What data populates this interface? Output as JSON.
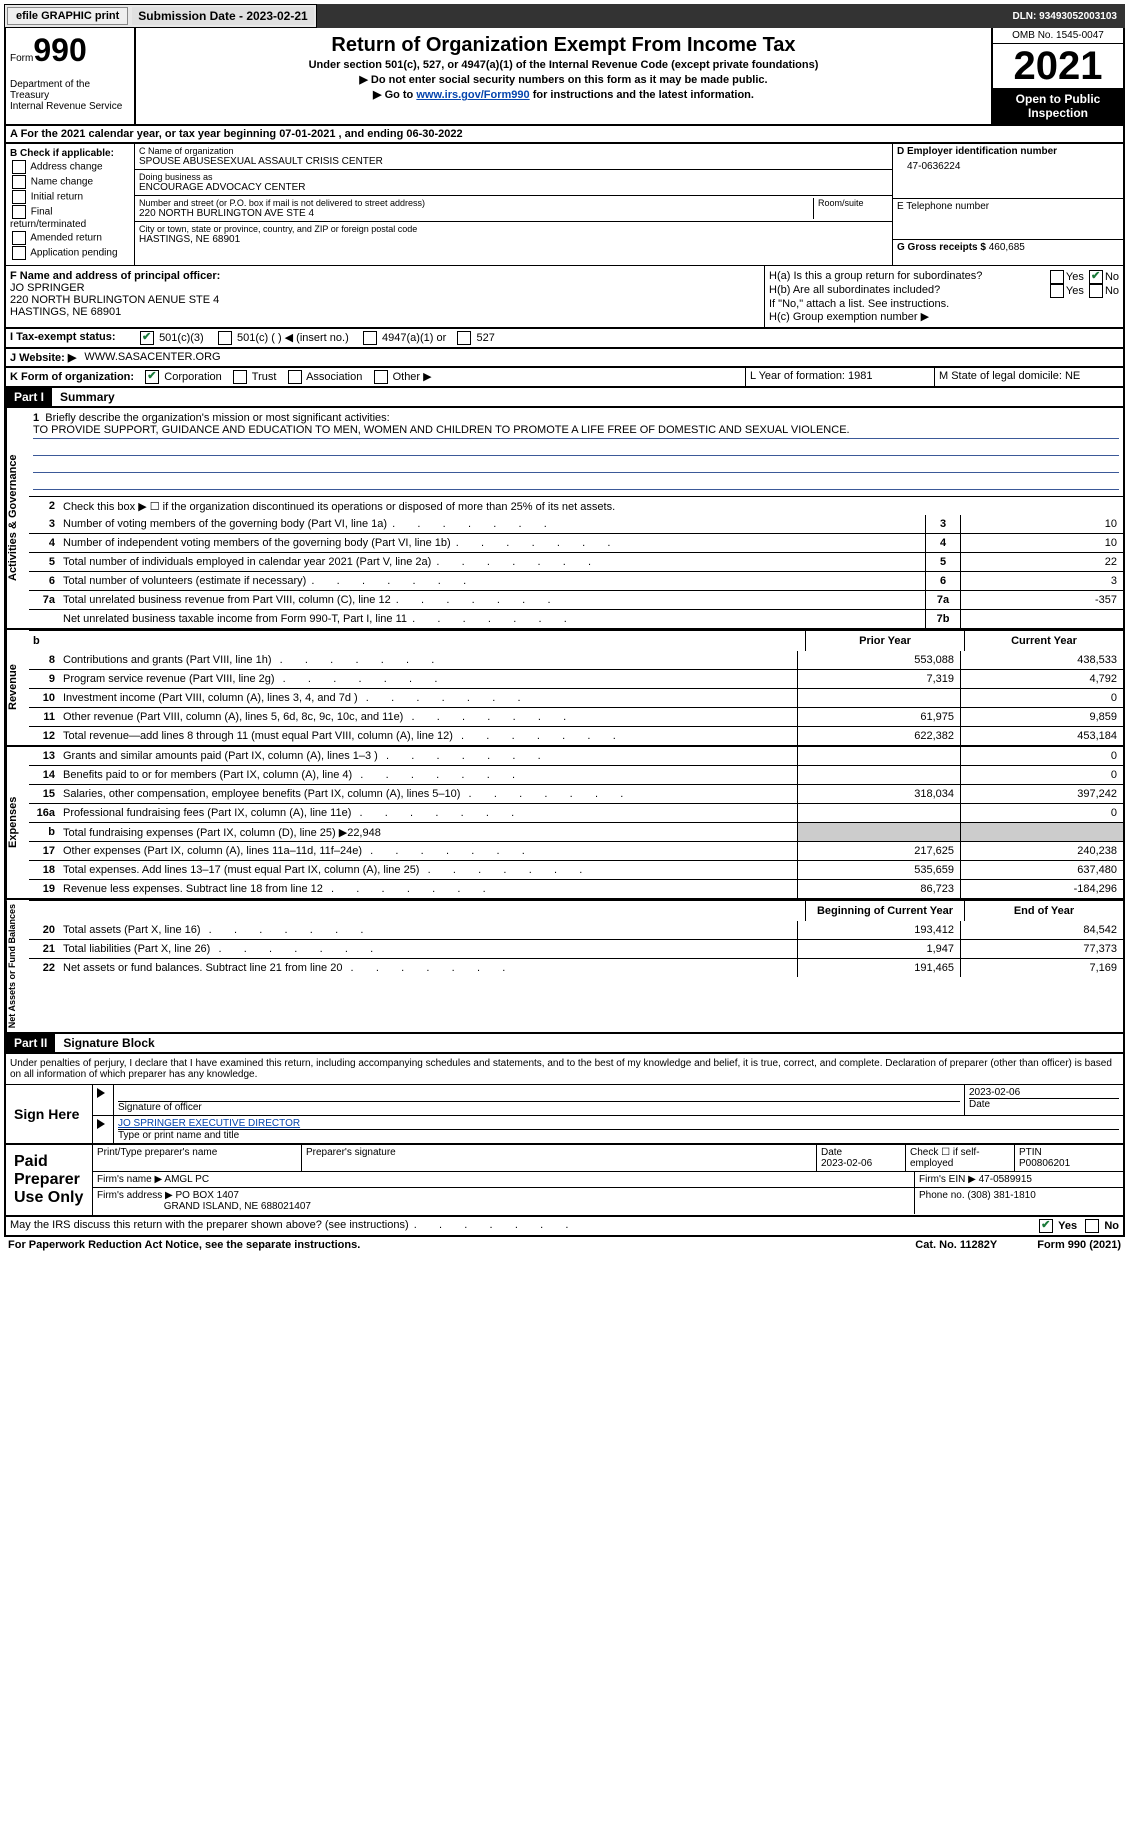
{
  "topbar": {
    "efile": "efile GRAPHIC print",
    "subdate_label": "Submission Date - 2023-02-21",
    "dln": "DLN: 93493052003103"
  },
  "header": {
    "form_word": "Form",
    "form_num": "990",
    "dept": "Department of the Treasury",
    "irs": "Internal Revenue Service",
    "title": "Return of Organization Exempt From Income Tax",
    "sub1": "Under section 501(c), 527, or 4947(a)(1) of the Internal Revenue Code (except private foundations)",
    "sub2": "▶ Do not enter social security numbers on this form as it may be made public.",
    "sub3_pre": "▶ Go to ",
    "sub3_link": "www.irs.gov/Form990",
    "sub3_post": " for instructions and the latest information.",
    "omb": "OMB No. 1545-0047",
    "year": "2021",
    "inspect": "Open to Public Inspection"
  },
  "row_a": "A For the 2021 calendar year, or tax year beginning 07-01-2021    , and ending 06-30-2022",
  "col_b": {
    "hdr": "B Check if applicable:",
    "opts": [
      "Address change",
      "Name change",
      "Initial return",
      "Final return/terminated",
      "Amended return",
      "Application pending"
    ]
  },
  "col_c": {
    "name_lbl": "C Name of organization",
    "name": "SPOUSE ABUSESEXUAL ASSAULT CRISIS CENTER",
    "dba_lbl": "Doing business as",
    "dba": "ENCOURAGE ADVOCACY CENTER",
    "addr_lbl": "Number and street (or P.O. box if mail is not delivered to street address)",
    "addr": "220 NORTH BURLINGTON AVE STE 4",
    "room_lbl": "Room/suite",
    "city_lbl": "City or town, state or province, country, and ZIP or foreign postal code",
    "city": "HASTINGS, NE  68901"
  },
  "col_d": {
    "ein_lbl": "D Employer identification number",
    "ein": "47-0636224",
    "tel_lbl": "E Telephone number",
    "gross_lbl": "G Gross receipts $",
    "gross": "460,685"
  },
  "section_f": {
    "f_lbl": "F  Name and address of principal officer:",
    "f_name": "JO SPRINGER",
    "f_addr1": "220 NORTH BURLINGTON AENUE STE 4",
    "f_addr2": "HASTINGS, NE  68901",
    "ha": "H(a)  Is this a group return for subordinates?",
    "hb": "H(b)  Are all subordinates included?",
    "hb_note": "If \"No,\" attach a list. See instructions.",
    "hc": "H(c)  Group exemption number ▶",
    "yes": "Yes",
    "no": "No"
  },
  "row_i": {
    "lbl": "I  Tax-exempt status:",
    "o1": "501(c)(3)",
    "o2": "501(c) (  ) ◀ (insert no.)",
    "o3": "4947(a)(1) or",
    "o4": "527"
  },
  "row_j": {
    "lbl": "J  Website: ▶",
    "val": "WWW.SASACENTER.ORG"
  },
  "row_k": {
    "lbl": "K Form of organization:",
    "o1": "Corporation",
    "o2": "Trust",
    "o3": "Association",
    "o4": "Other ▶",
    "l": "L Year of formation: 1981",
    "m": "M State of legal domicile: NE"
  },
  "part1": {
    "hdr": "Part I",
    "title": "Summary"
  },
  "mission": {
    "lbl": "Briefly describe the organization's mission or most significant activities:",
    "text": "TO PROVIDE SUPPORT, GUIDANCE AND EDUCATION TO MEN, WOMEN AND CHILDREN TO PROMOTE A LIFE FREE OF DOMESTIC AND SEXUAL VIOLENCE."
  },
  "line2": "Check this box ▶ ☐ if the organization discontinued its operations or disposed of more than 25% of its net assets.",
  "lines_gov": [
    {
      "n": "3",
      "d": "Number of voting members of the governing body (Part VI, line 1a)",
      "b": "3",
      "v": "10"
    },
    {
      "n": "4",
      "d": "Number of independent voting members of the governing body (Part VI, line 1b)",
      "b": "4",
      "v": "10"
    },
    {
      "n": "5",
      "d": "Total number of individuals employed in calendar year 2021 (Part V, line 2a)",
      "b": "5",
      "v": "22"
    },
    {
      "n": "6",
      "d": "Total number of volunteers (estimate if necessary)",
      "b": "6",
      "v": "3"
    },
    {
      "n": "7a",
      "d": "Total unrelated business revenue from Part VIII, column (C), line 12",
      "b": "7a",
      "v": "-357"
    },
    {
      "n": "",
      "d": "Net unrelated business taxable income from Form 990-T, Part I, line 11",
      "b": "7b",
      "v": ""
    }
  ],
  "col_hdrs": {
    "prior": "Prior Year",
    "current": "Current Year",
    "begin": "Beginning of Current Year",
    "end": "End of Year"
  },
  "lines_rev": [
    {
      "n": "8",
      "d": "Contributions and grants (Part VIII, line 1h)",
      "p": "553,088",
      "c": "438,533"
    },
    {
      "n": "9",
      "d": "Program service revenue (Part VIII, line 2g)",
      "p": "7,319",
      "c": "4,792"
    },
    {
      "n": "10",
      "d": "Investment income (Part VIII, column (A), lines 3, 4, and 7d )",
      "p": "",
      "c": "0"
    },
    {
      "n": "11",
      "d": "Other revenue (Part VIII, column (A), lines 5, 6d, 8c, 9c, 10c, and 11e)",
      "p": "61,975",
      "c": "9,859"
    },
    {
      "n": "12",
      "d": "Total revenue—add lines 8 through 11 (must equal Part VIII, column (A), line 12)",
      "p": "622,382",
      "c": "453,184"
    }
  ],
  "lines_exp": [
    {
      "n": "13",
      "d": "Grants and similar amounts paid (Part IX, column (A), lines 1–3 )",
      "p": "",
      "c": "0"
    },
    {
      "n": "14",
      "d": "Benefits paid to or for members (Part IX, column (A), line 4)",
      "p": "",
      "c": "0"
    },
    {
      "n": "15",
      "d": "Salaries, other compensation, employee benefits (Part IX, column (A), lines 5–10)",
      "p": "318,034",
      "c": "397,242"
    },
    {
      "n": "16a",
      "d": "Professional fundraising fees (Part IX, column (A), line 11e)",
      "p": "",
      "c": "0"
    },
    {
      "n": "b",
      "d": "Total fundraising expenses (Part IX, column (D), line 25) ▶22,948",
      "p": "grey",
      "c": "grey"
    },
    {
      "n": "17",
      "d": "Other expenses (Part IX, column (A), lines 11a–11d, 11f–24e)",
      "p": "217,625",
      "c": "240,238"
    },
    {
      "n": "18",
      "d": "Total expenses. Add lines 13–17 (must equal Part IX, column (A), line 25)",
      "p": "535,659",
      "c": "637,480"
    },
    {
      "n": "19",
      "d": "Revenue less expenses. Subtract line 18 from line 12",
      "p": "86,723",
      "c": "-184,296"
    }
  ],
  "lines_net": [
    {
      "n": "20",
      "d": "Total assets (Part X, line 16)",
      "p": "193,412",
      "c": "84,542"
    },
    {
      "n": "21",
      "d": "Total liabilities (Part X, line 26)",
      "p": "1,947",
      "c": "77,373"
    },
    {
      "n": "22",
      "d": "Net assets or fund balances. Subtract line 21 from line 20",
      "p": "191,465",
      "c": "7,169"
    }
  ],
  "vtabs": {
    "gov": "Activities & Governance",
    "rev": "Revenue",
    "exp": "Expenses",
    "net": "Net Assets or Fund Balances"
  },
  "part2": {
    "hdr": "Part II",
    "title": "Signature Block",
    "penalty": "Under penalties of perjury, I declare that I have examined this return, including accompanying schedules and statements, and to the best of my knowledge and belief, it is true, correct, and complete. Declaration of preparer (other than officer) is based on all information of which preparer has any knowledge."
  },
  "sign": {
    "here": "Sign Here",
    "sig_lbl": "Signature of officer",
    "date": "2023-02-06",
    "date_lbl": "Date",
    "name": "JO SPRINGER  EXECUTIVE DIRECTOR",
    "name_lbl": "Type or print name and title"
  },
  "paid": {
    "hdr": "Paid Preparer Use Only",
    "print_lbl": "Print/Type preparer's name",
    "sig_lbl": "Preparer's signature",
    "date_lbl": "Date",
    "date": "2023-02-06",
    "check_lbl": "Check ☐ if self-employed",
    "ptin_lbl": "PTIN",
    "ptin": "P00806201",
    "firm_lbl": "Firm's name    ▶",
    "firm": "AMGL PC",
    "ein_lbl": "Firm's EIN ▶",
    "ein": "47-0589915",
    "addr_lbl": "Firm's address ▶",
    "addr1": "PO BOX 1407",
    "addr2": "GRAND ISLAND, NE  688021407",
    "phone_lbl": "Phone no.",
    "phone": "(308) 381-1810"
  },
  "may_irs": "May the IRS discuss this return with the preparer shown above? (see instructions)",
  "footer": {
    "left": "For Paperwork Reduction Act Notice, see the separate instructions.",
    "mid": "Cat. No. 11282Y",
    "right": "Form 990 (2021)"
  }
}
